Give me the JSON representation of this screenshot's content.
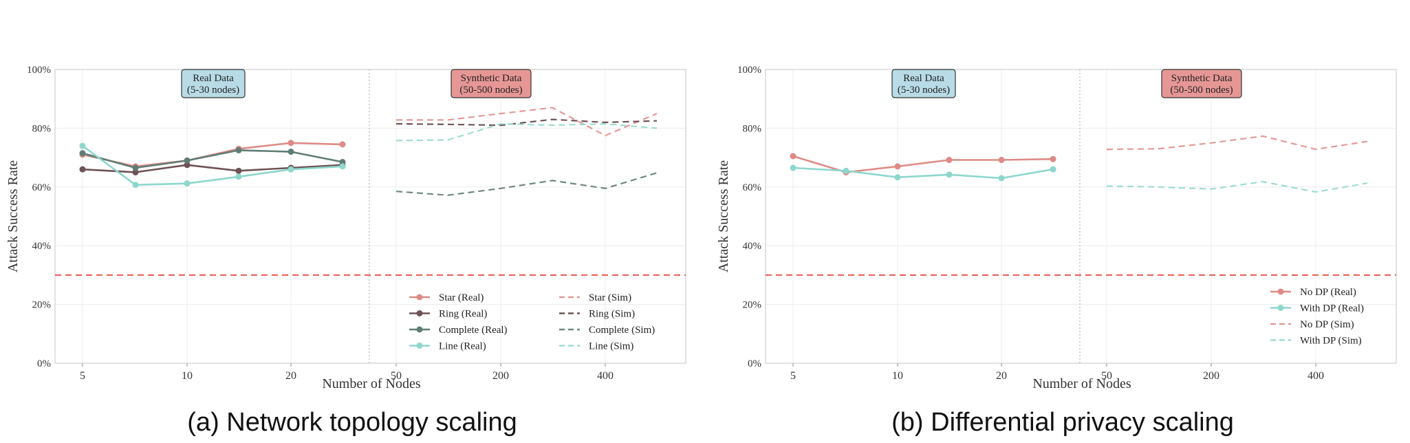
{
  "charts": [
    {
      "caption": "(a) Network topology scaling",
      "ylabel": "Attack Success Rate",
      "xlabel": "Number of Nodes",
      "yticks": [
        "0%",
        "20%",
        "40%",
        "60%",
        "80%",
        "100%"
      ],
      "xticks": [
        "5",
        "10",
        "20",
        "50",
        "200",
        "400"
      ],
      "real_box": "Real Data\n(5-30 nodes)",
      "sim_box": "Synthetic Data\n(50-500 nodes)"
    },
    {
      "caption": "(b) Differential privacy scaling",
      "ylabel": "Attack Success Rate",
      "xlabel": "Number of Nodes",
      "yticks": [
        "0%",
        "20%",
        "40%",
        "60%",
        "80%",
        "100%"
      ],
      "xticks": [
        "5",
        "10",
        "20",
        "50",
        "200",
        "400"
      ],
      "real_box": "Real Data\n(5-30 nodes)",
      "sim_box": "Synthetic Data\n(50-500 nodes)"
    }
  ],
  "chart_data": [
    {
      "type": "line",
      "title": "(a) Network topology scaling",
      "xlabel": "Number of Nodes",
      "ylabel": "Attack Success Rate",
      "ylim": [
        0,
        1
      ],
      "grid": true,
      "legend_position": "bottom-right",
      "reference_line": {
        "y": 0.3,
        "style": "dashed",
        "color": "#e8574e"
      },
      "real_x": [
        5,
        7.5,
        10,
        15,
        20,
        25
      ],
      "sim_x": [
        50,
        100,
        200,
        300,
        400,
        500
      ],
      "series": [
        {
          "name": "Star (Real)",
          "group": "real",
          "color": "#de8a86",
          "values": [
            0.71,
            0.67,
            0.69,
            0.73,
            0.75,
            0.745
          ]
        },
        {
          "name": "Ring (Real)",
          "group": "real",
          "color": "#6e5255",
          "values": [
            0.66,
            0.65,
            0.675,
            0.655,
            0.665,
            0.675
          ]
        },
        {
          "name": "Complete (Real)",
          "group": "real",
          "color": "#5f7c75",
          "values": [
            0.715,
            0.665,
            0.69,
            0.725,
            0.72,
            0.685
          ]
        },
        {
          "name": "Line (Real)",
          "group": "real",
          "color": "#8dd7cc",
          "values": [
            0.74,
            0.607,
            0.612,
            0.635,
            0.66,
            0.67
          ]
        },
        {
          "name": "Star (Sim)",
          "group": "sim",
          "color": "#e49a96",
          "values": [
            0.828,
            0.828,
            0.85,
            0.87,
            0.775,
            0.85
          ]
        },
        {
          "name": "Ring (Sim)",
          "group": "sim",
          "color": "#6e5255",
          "values": [
            0.815,
            0.813,
            0.81,
            0.83,
            0.82,
            0.825
          ]
        },
        {
          "name": "Complete (Sim)",
          "group": "sim",
          "color": "#6f8782",
          "values": [
            0.585,
            0.572,
            0.595,
            0.622,
            0.595,
            0.648
          ]
        },
        {
          "name": "Line (Sim)",
          "group": "sim",
          "color": "#9edcd2",
          "values": [
            0.758,
            0.76,
            0.815,
            0.81,
            0.815,
            0.8
          ]
        }
      ]
    },
    {
      "type": "line",
      "title": "(b) Differential privacy scaling",
      "xlabel": "Number of Nodes",
      "ylabel": "Attack Success Rate",
      "ylim": [
        0,
        1
      ],
      "grid": true,
      "legend_position": "bottom-right",
      "reference_line": {
        "y": 0.3,
        "style": "dashed",
        "color": "#e8574e"
      },
      "real_x": [
        5,
        7.5,
        10,
        15,
        20,
        25
      ],
      "sim_x": [
        50,
        100,
        200,
        300,
        400,
        500
      ],
      "series": [
        {
          "name": "No DP (Real)",
          "group": "real",
          "color": "#de8a86",
          "values": [
            0.705,
            0.65,
            0.67,
            0.692,
            0.692,
            0.695
          ]
        },
        {
          "name": "With DP (Real)",
          "group": "real",
          "color": "#8dd7cc",
          "values": [
            0.665,
            0.655,
            0.633,
            0.642,
            0.63,
            0.66
          ]
        },
        {
          "name": "No DP (Sim)",
          "group": "sim",
          "color": "#e49a96",
          "values": [
            0.728,
            0.73,
            0.75,
            0.773,
            0.728,
            0.755
          ]
        },
        {
          "name": "With DP (Sim)",
          "group": "sim",
          "color": "#9edcd2",
          "values": [
            0.603,
            0.6,
            0.593,
            0.618,
            0.583,
            0.613
          ]
        }
      ]
    }
  ]
}
